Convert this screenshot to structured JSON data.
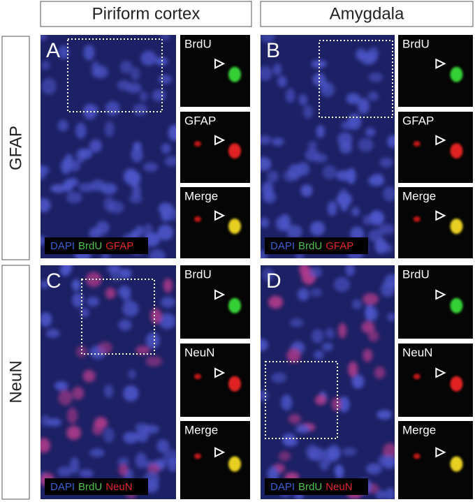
{
  "columns": [
    "Piriform cortex",
    "Amygdala"
  ],
  "rows": [
    "GFAP",
    "NeuN"
  ],
  "panels": [
    {
      "letter": "A",
      "legend": [
        "DAPI",
        "BrdU",
        "GFAP"
      ],
      "insets": [
        "BrdU",
        "GFAP",
        "Merge"
      ]
    },
    {
      "letter": "B",
      "legend": [
        "DAPI",
        "BrdU",
        "GFAP"
      ],
      "insets": [
        "BrdU",
        "GFAP",
        "Merge"
      ]
    },
    {
      "letter": "C",
      "legend": [
        "DAPI",
        "BrdU",
        "NeuN"
      ],
      "insets": [
        "BrdU",
        "NeuN",
        "Merge"
      ]
    },
    {
      "letter": "D",
      "legend": [
        "DAPI",
        "BrdU",
        "NeuN"
      ],
      "insets": [
        "BrdU",
        "NeuN",
        "Merge"
      ]
    }
  ]
}
